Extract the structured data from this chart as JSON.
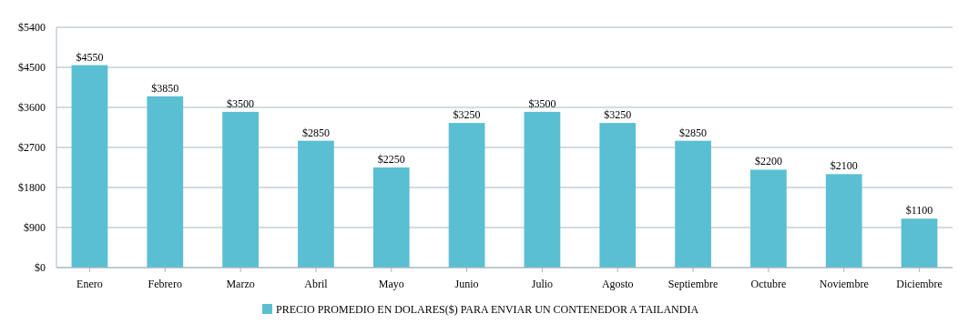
{
  "chart_data": {
    "type": "bar",
    "categories": [
      "Enero",
      "Febrero",
      "Marzo",
      "Abril",
      "Mayo",
      "Junio",
      "Julio",
      "Agosto",
      "Septiembre",
      "Octubre",
      "Noviembre",
      "Diciembre"
    ],
    "series": [
      {
        "name": "PRECIO PROMEDIO EN DOLARES($) PARA ENVIAR UN CONTENEDOR A TAILANDIA",
        "color": "#5bbfd3",
        "values": [
          4550,
          3850,
          3500,
          2850,
          2250,
          3250,
          3500,
          3250,
          2850,
          2200,
          2100,
          1100
        ],
        "value_labels": [
          "$4550",
          "$3850",
          "$3500",
          "$2850",
          "$2250",
          "$3250",
          "$3500",
          "$3250",
          "$2850",
          "$2200",
          "$2100",
          "$1100"
        ]
      }
    ],
    "ylim": [
      0,
      5400
    ],
    "yticks": [
      {
        "value": 0,
        "label": "$0"
      },
      {
        "value": 900,
        "label": "$900"
      },
      {
        "value": 1800,
        "label": "$1800"
      },
      {
        "value": 2700,
        "label": "$2700"
      },
      {
        "value": 3600,
        "label": "$3600"
      },
      {
        "value": 4500,
        "label": "$4500"
      },
      {
        "value": 5400,
        "label": "$5400"
      }
    ],
    "grid": "y",
    "legend": "bottom"
  }
}
